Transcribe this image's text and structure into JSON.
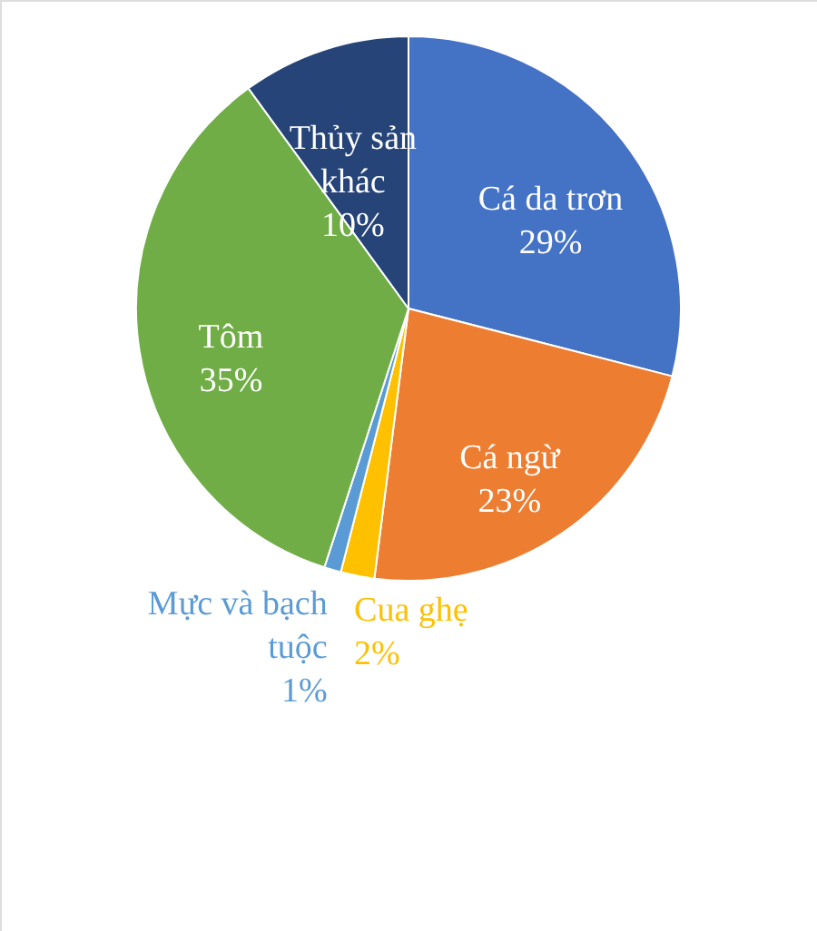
{
  "chart_data": {
    "type": "pie",
    "categories": [
      "Cá da trơn",
      "Cá ngừ",
      "Cua ghẹ",
      "Mực và bạch tuộc",
      "Tôm",
      "Thủy sản khác"
    ],
    "values": [
      29,
      23,
      2,
      1,
      35,
      10
    ],
    "value_labels": [
      "29%",
      "23%",
      "2%",
      "1%",
      "35%",
      "10%"
    ],
    "colors": [
      "#4472c4",
      "#ed7d31",
      "#ffc000",
      "#5b9bd5",
      "#70ad47",
      "#264478"
    ]
  }
}
